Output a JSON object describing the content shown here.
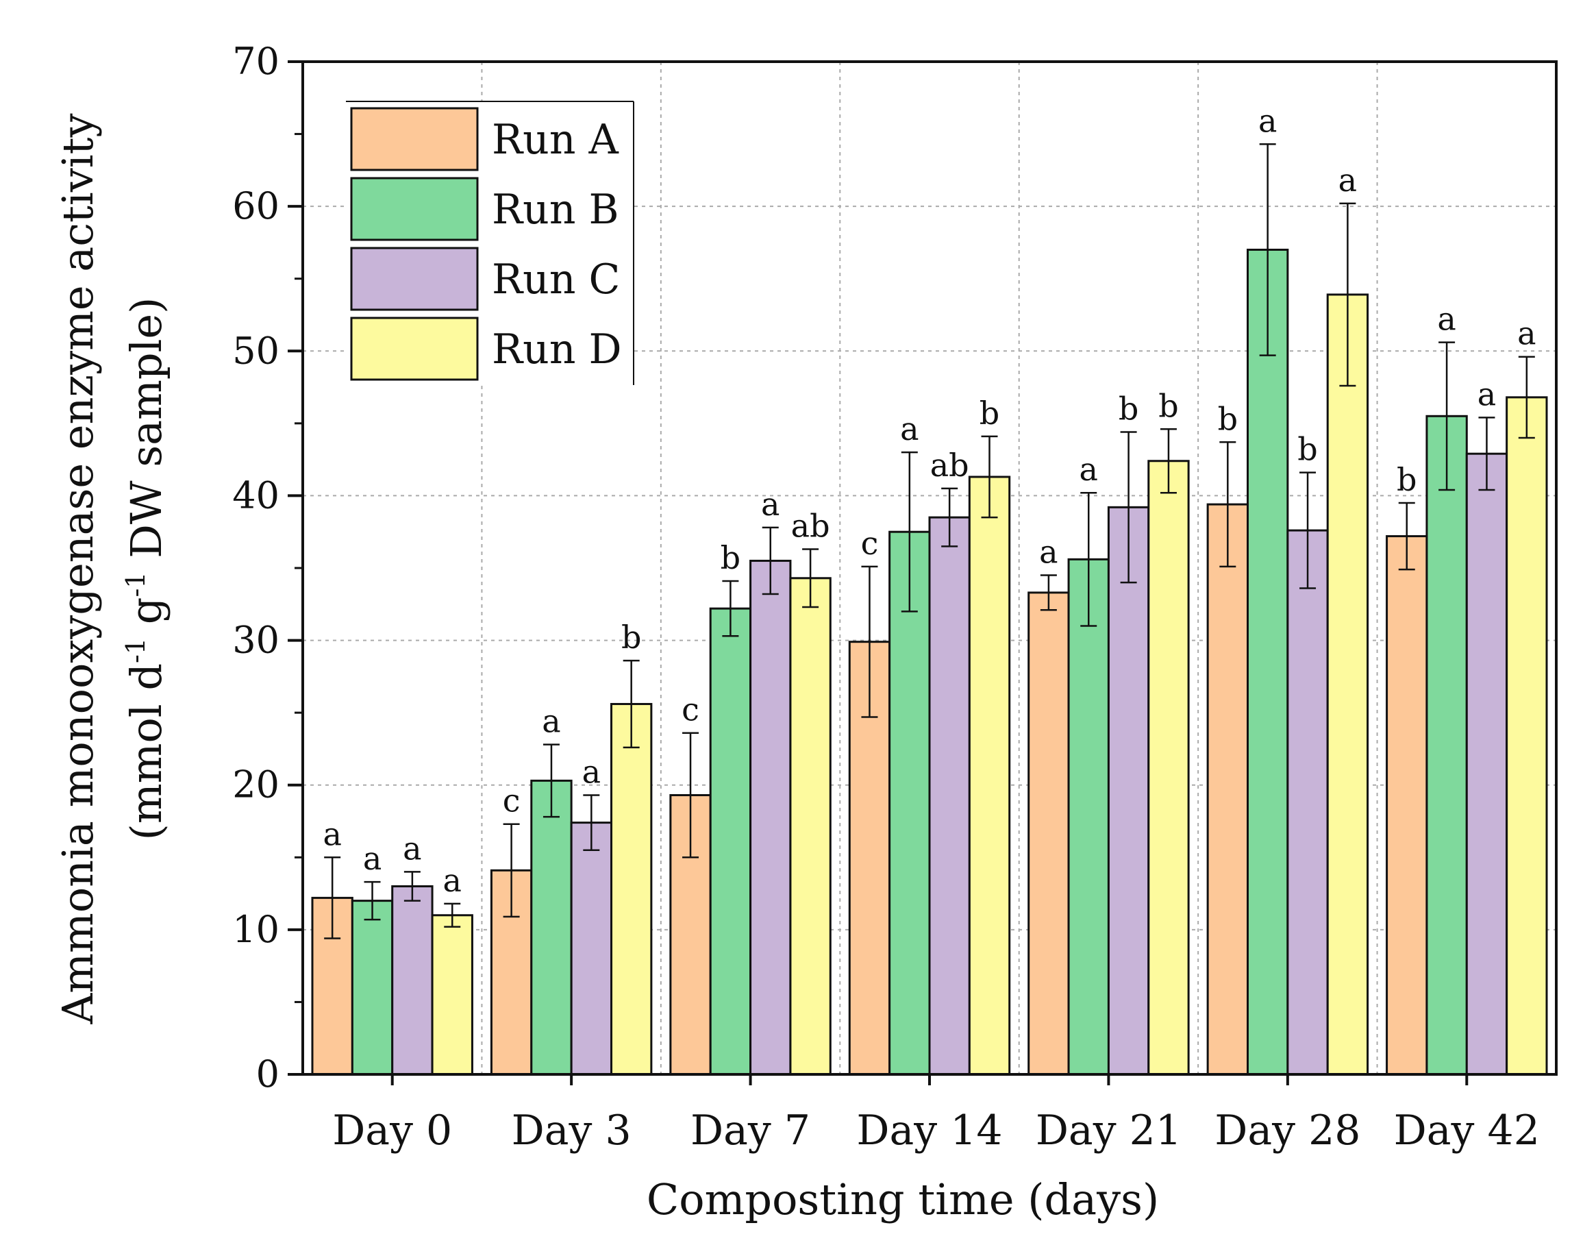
{
  "chart_data": {
    "type": "bar",
    "title": "",
    "xlabel": "Composting time (days)",
    "ylabel_line1": "Ammonia monooxygenase enzyme activity",
    "ylabel_line2": {
      "open": "(mmol d",
      "sup1": "-1",
      "mid": " g",
      "sup2": "-1",
      "close": " DW sample)"
    },
    "ylim": [
      0,
      70
    ],
    "yticks": [
      0,
      10,
      20,
      30,
      40,
      50,
      60,
      70
    ],
    "grid": true,
    "legend_position": "top-left",
    "categories": [
      "Day 0",
      "Day 3",
      "Day 7",
      "Day 14",
      "Day 21",
      "Day 28",
      "Day 42"
    ],
    "series": [
      {
        "name": "Run A",
        "color": "#FDC898",
        "values": [
          12.2,
          14.1,
          19.3,
          29.9,
          33.3,
          39.4,
          37.2
        ],
        "error": [
          2.8,
          3.2,
          4.3,
          5.2,
          1.2,
          4.3,
          2.3
        ],
        "labels": [
          "a",
          "c",
          "c",
          "c",
          "a",
          "b",
          "b"
        ]
      },
      {
        "name": "Run B",
        "color": "#7FD99C",
        "values": [
          12.0,
          20.3,
          32.2,
          37.5,
          35.6,
          57.0,
          45.5
        ],
        "error": [
          1.3,
          2.5,
          1.9,
          5.5,
          4.6,
          7.3,
          5.1
        ],
        "labels": [
          "a",
          "a",
          "b",
          "a",
          "a",
          "a",
          "a"
        ]
      },
      {
        "name": "Run C",
        "color": "#C8B4D8",
        "values": [
          13.0,
          17.4,
          35.5,
          38.5,
          39.2,
          37.6,
          42.9
        ],
        "error": [
          1.0,
          1.9,
          2.3,
          2.0,
          5.2,
          4.0,
          2.5
        ],
        "labels": [
          "a",
          "a",
          "a",
          "ab",
          "b",
          "b",
          "a"
        ]
      },
      {
        "name": "Run D",
        "color": "#FDFA9E",
        "values": [
          11.0,
          25.6,
          34.3,
          41.3,
          42.4,
          53.9,
          46.8
        ],
        "error": [
          0.8,
          3.0,
          2.0,
          2.8,
          2.2,
          6.3,
          2.8
        ],
        "labels": [
          "a",
          "b",
          "ab",
          "b",
          "b",
          "a",
          "a"
        ]
      }
    ]
  }
}
